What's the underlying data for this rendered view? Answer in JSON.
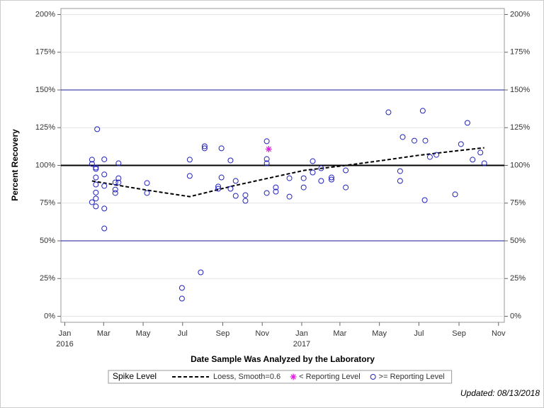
{
  "chart_data": {
    "type": "scatter",
    "y_label": "Percent Recovery",
    "x_label": "Date Sample Was Analyzed by the Laboratory",
    "legend_title": "Spike Level",
    "footnote": "Updated: 08/13/2018",
    "grid": true,
    "xlim": [
      "2015-12-26",
      "2017-11-10"
    ],
    "xticks": [
      {
        "value": "2016-01-01",
        "label": "Jan"
      },
      {
        "value": "2016-03-01",
        "label": "Mar"
      },
      {
        "value": "2016-05-01",
        "label": "May"
      },
      {
        "value": "2016-07-01",
        "label": "Jul"
      },
      {
        "value": "2016-09-01",
        "label": "Sep"
      },
      {
        "value": "2016-11-01",
        "label": "Nov"
      },
      {
        "value": "2017-01-01",
        "label": "Jan"
      },
      {
        "value": "2017-03-01",
        "label": "Mar"
      },
      {
        "value": "2017-05-01",
        "label": "May"
      },
      {
        "value": "2017-07-01",
        "label": "Jul"
      },
      {
        "value": "2017-09-01",
        "label": "Sep"
      },
      {
        "value": "2017-11-01",
        "label": "Nov"
      }
    ],
    "xtick_years": [
      {
        "value": "2016-01-01",
        "label": "2016"
      },
      {
        "value": "2017-01-01",
        "label": "2017"
      }
    ],
    "ylim": [
      -4,
      204
    ],
    "yticks": [
      {
        "value": 0,
        "label": "0%"
      },
      {
        "value": 25,
        "label": "25%"
      },
      {
        "value": 50,
        "label": "50%"
      },
      {
        "value": 75,
        "label": "75%"
      },
      {
        "value": 100,
        "label": "100%"
      },
      {
        "value": 125,
        "label": "125%"
      },
      {
        "value": 150,
        "label": "150%"
      },
      {
        "value": 175,
        "label": "175%"
      },
      {
        "value": 200,
        "label": "200%"
      }
    ],
    "reference_lines": [
      {
        "value": 50,
        "color": "#1a1a99",
        "width": 1
      },
      {
        "value": 100,
        "color": "#000000",
        "width": 2
      },
      {
        "value": 150,
        "color": "#1a1a99",
        "width": 1
      }
    ],
    "series": [
      {
        "name": "Loess, Smooth=0.6",
        "kind": "line",
        "color": "#000000",
        "dashed": true,
        "x": [
          "2016-02-12",
          "2016-05-07",
          "2016-07-12",
          "2016-09-17",
          "2016-11-06",
          "2017-01-05",
          "2017-03-01",
          "2017-05-06",
          "2017-06-29",
          "2017-08-23",
          "2017-10-10"
        ],
        "values": [
          89.7,
          83.6,
          79.3,
          86.4,
          91.1,
          96.7,
          99.5,
          103.3,
          106.6,
          109.4,
          111.7
        ]
      },
      {
        "name": "< Reporting Level",
        "kind": "star",
        "color": "#dd22dd",
        "x": [
          "2016-11-11"
        ],
        "values": [
          110.8
        ]
      },
      {
        "name": ">= Reporting Level",
        "kind": "circle",
        "color": "#2222bb",
        "x": [
          "2016-02-12",
          "2016-02-12",
          "2016-02-12",
          "2016-02-18",
          "2016-02-18",
          "2016-02-18",
          "2016-02-18",
          "2016-02-18",
          "2016-02-18",
          "2016-02-18",
          "2016-02-20",
          "2016-03-02",
          "2016-03-02",
          "2016-03-02",
          "2016-03-02",
          "2016-03-02",
          "2016-03-19",
          "2016-03-19",
          "2016-03-19",
          "2016-03-24",
          "2016-03-24",
          "2016-03-24",
          "2016-05-07",
          "2016-05-07",
          "2016-06-30",
          "2016-06-30",
          "2016-07-12",
          "2016-07-12",
          "2016-07-29",
          "2016-08-04",
          "2016-08-04",
          "2016-08-25",
          "2016-08-25",
          "2016-08-30",
          "2016-08-30",
          "2016-09-13",
          "2016-09-13",
          "2016-09-21",
          "2016-09-21",
          "2016-10-06",
          "2016-10-06",
          "2016-11-08",
          "2016-11-08",
          "2016-11-08",
          "2016-11-08",
          "2016-11-22",
          "2016-11-22",
          "2016-12-13",
          "2016-12-13",
          "2017-01-04",
          "2017-01-04",
          "2017-01-18",
          "2017-01-18",
          "2017-01-31",
          "2017-01-31",
          "2017-02-16",
          "2017-02-16",
          "2017-03-10",
          "2017-03-10",
          "2017-05-15",
          "2017-06-02",
          "2017-06-02",
          "2017-06-06",
          "2017-06-24",
          "2017-07-07",
          "2017-07-10",
          "2017-07-11",
          "2017-07-18",
          "2017-07-28",
          "2017-08-26",
          "2017-09-04",
          "2017-09-14",
          "2017-09-22",
          "2017-10-04",
          "2017-10-10"
        ],
        "values": [
          103.8,
          101.0,
          75.6,
          98.6,
          97.7,
          92.0,
          87.3,
          82.0,
          78.0,
          72.8,
          124.0,
          104.0,
          94.0,
          86.4,
          71.4,
          58.2,
          88.7,
          84.0,
          81.7,
          101.4,
          91.5,
          88.7,
          88.3,
          81.7,
          18.8,
          11.7,
          103.8,
          93.0,
          29.1,
          112.7,
          111.3,
          86.0,
          84.5,
          111.3,
          92.0,
          103.3,
          84.5,
          89.7,
          79.8,
          80.3,
          76.5,
          116.0,
          104.2,
          101.4,
          81.7,
          85.4,
          82.6,
          91.5,
          79.3,
          91.5,
          85.4,
          102.8,
          95.3,
          98.1,
          89.7,
          92.0,
          90.6,
          96.7,
          85.4,
          135.2,
          96.2,
          89.7,
          118.8,
          116.4,
          136.2,
          77.0,
          116.4,
          105.6,
          107.0,
          80.8,
          114.1,
          128.2,
          103.8,
          108.5,
          101.4
        ]
      }
    ]
  }
}
